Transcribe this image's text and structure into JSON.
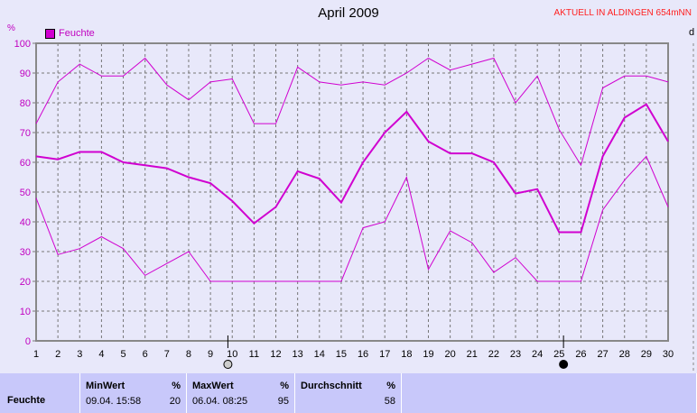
{
  "title": "April 2009",
  "station": "AKTUELL IN ALDINGEN 654mNN",
  "right_axis_label": "d",
  "chart_data": {
    "type": "line",
    "title": "April 2009",
    "ylabel": "%",
    "ylim": [
      0,
      100
    ],
    "yticks": [
      0,
      10,
      20,
      30,
      40,
      50,
      60,
      70,
      80,
      90,
      100
    ],
    "x": [
      1,
      2,
      3,
      4,
      5,
      6,
      7,
      8,
      9,
      10,
      11,
      12,
      13,
      14,
      15,
      16,
      17,
      18,
      19,
      20,
      21,
      22,
      23,
      24,
      25,
      26,
      27,
      28,
      29,
      30
    ],
    "grid": true,
    "legend": "top-left",
    "legend_entries": [
      "Feuchte"
    ],
    "color": "#d000d0",
    "series": [
      {
        "name": "Feuchte",
        "values": [
          62,
          61,
          63.5,
          63.5,
          60,
          59,
          58,
          55,
          53,
          47,
          39.5,
          45,
          57,
          54.5,
          46.5,
          60,
          70,
          77,
          67,
          63,
          63,
          60,
          49.5,
          51,
          36.5,
          36.5,
          62,
          75,
          79.5,
          67
        ]
      },
      {
        "values": [
          73,
          87,
          93,
          89,
          89,
          95,
          86,
          81,
          87,
          88,
          73,
          73,
          92,
          87,
          86,
          87,
          86,
          90,
          95,
          91,
          93,
          95,
          80,
          89,
          71,
          59,
          85,
          89,
          89,
          87
        ]
      },
      {
        "values": [
          48,
          29,
          31,
          35,
          31,
          22,
          26,
          30,
          20,
          20,
          20,
          20,
          20,
          20,
          20,
          38,
          40,
          55,
          24,
          37,
          33,
          23,
          28,
          20,
          20,
          20,
          44,
          54,
          62,
          45
        ]
      }
    ],
    "moon_phases": [
      {
        "day": 9.8,
        "phase": "full-moon"
      },
      {
        "day": 25.2,
        "phase": "new-moon"
      }
    ]
  },
  "stats": {
    "row_label": "Feuchte",
    "min": {
      "header": "MinWert",
      "unit": "%",
      "date": "09.04.  15:58",
      "value": "20"
    },
    "max": {
      "header": "MaxWert",
      "unit": "%",
      "date": "06.04.  08:25",
      "value": "95"
    },
    "avg": {
      "header": "Durchschnitt",
      "unit": "%",
      "value": "58"
    }
  }
}
